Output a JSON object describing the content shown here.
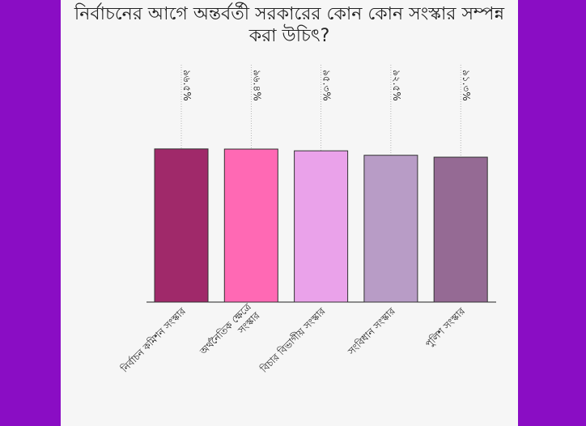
{
  "chart_data": {
    "type": "bar",
    "title": "নির্বাচনের আগে অন্তর্বর্তী সরকারের কোন কোন সংস্কার সম্পন্ন করা উচিৎ?",
    "categories": [
      "নির্বাচন কমিশন সংস্কার",
      "অর্থনৈতিক ক্ষেত্রে\nসংস্কার",
      "বিচার বিভাগীয় সংস্কার",
      "সংবিধান সংস্কার",
      "পুলিশ সংস্কার"
    ],
    "values": [
      96.5,
      96.4,
      95.3,
      92.5,
      91.3
    ],
    "value_labels": [
      "৯৬.৫%",
      "৯৬.৪%",
      "৯৫.৩%",
      "৯২.৫%",
      "৯১.৩%"
    ],
    "colors": [
      "#a0296a",
      "#ff69b4",
      "#eaa2ea",
      "#b89cc6",
      "#956a94"
    ]
  }
}
